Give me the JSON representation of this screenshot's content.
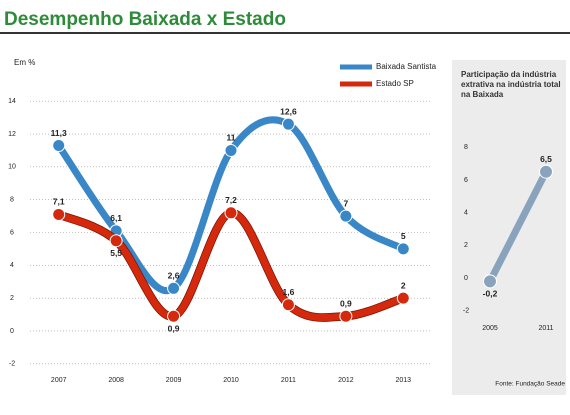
{
  "title": "Desempenho Baixada x Estado",
  "chart_data": [
    {
      "type": "line",
      "y_label": "Em %",
      "categories": [
        "2007",
        "2008",
        "2009",
        "2010",
        "2011",
        "2012",
        "2013"
      ],
      "series": [
        {
          "name": "Baixada Santista",
          "color": "#3a87c8",
          "values": [
            11.3,
            6.1,
            2.6,
            11,
            12.6,
            7,
            5
          ],
          "value_labels": [
            "11,3",
            "6,1",
            "2,6",
            "11",
            "12,6",
            "7",
            "5"
          ]
        },
        {
          "name": "Estado SP",
          "color": "#d4290c",
          "values": [
            7.1,
            5.5,
            0.9,
            7.2,
            1.6,
            0.9,
            2
          ],
          "value_labels": [
            "7,1",
            "5,5",
            "0,9",
            "7,2",
            "1,6",
            "0,9",
            "2"
          ]
        }
      ],
      "ylim": [
        -2.5,
        14.5
      ],
      "yticks": [
        -2,
        0,
        2,
        4,
        6,
        8,
        10,
        12,
        14
      ],
      "grid": true,
      "legend": "top-right"
    },
    {
      "type": "line",
      "title": "Participação da indústria extrativa na indústria total na Baixada",
      "categories": [
        "2005",
        "2011"
      ],
      "series": [
        {
          "color": "#8aa3bd",
          "values": [
            -0.2,
            6.5
          ],
          "value_labels": [
            "-0,2",
            "6,5"
          ]
        }
      ],
      "ylim": [
        -2.5,
        8.5
      ],
      "yticks": [
        -2,
        0,
        2,
        4,
        6,
        8
      ],
      "source": "Fonte: Fundação Seade"
    }
  ]
}
